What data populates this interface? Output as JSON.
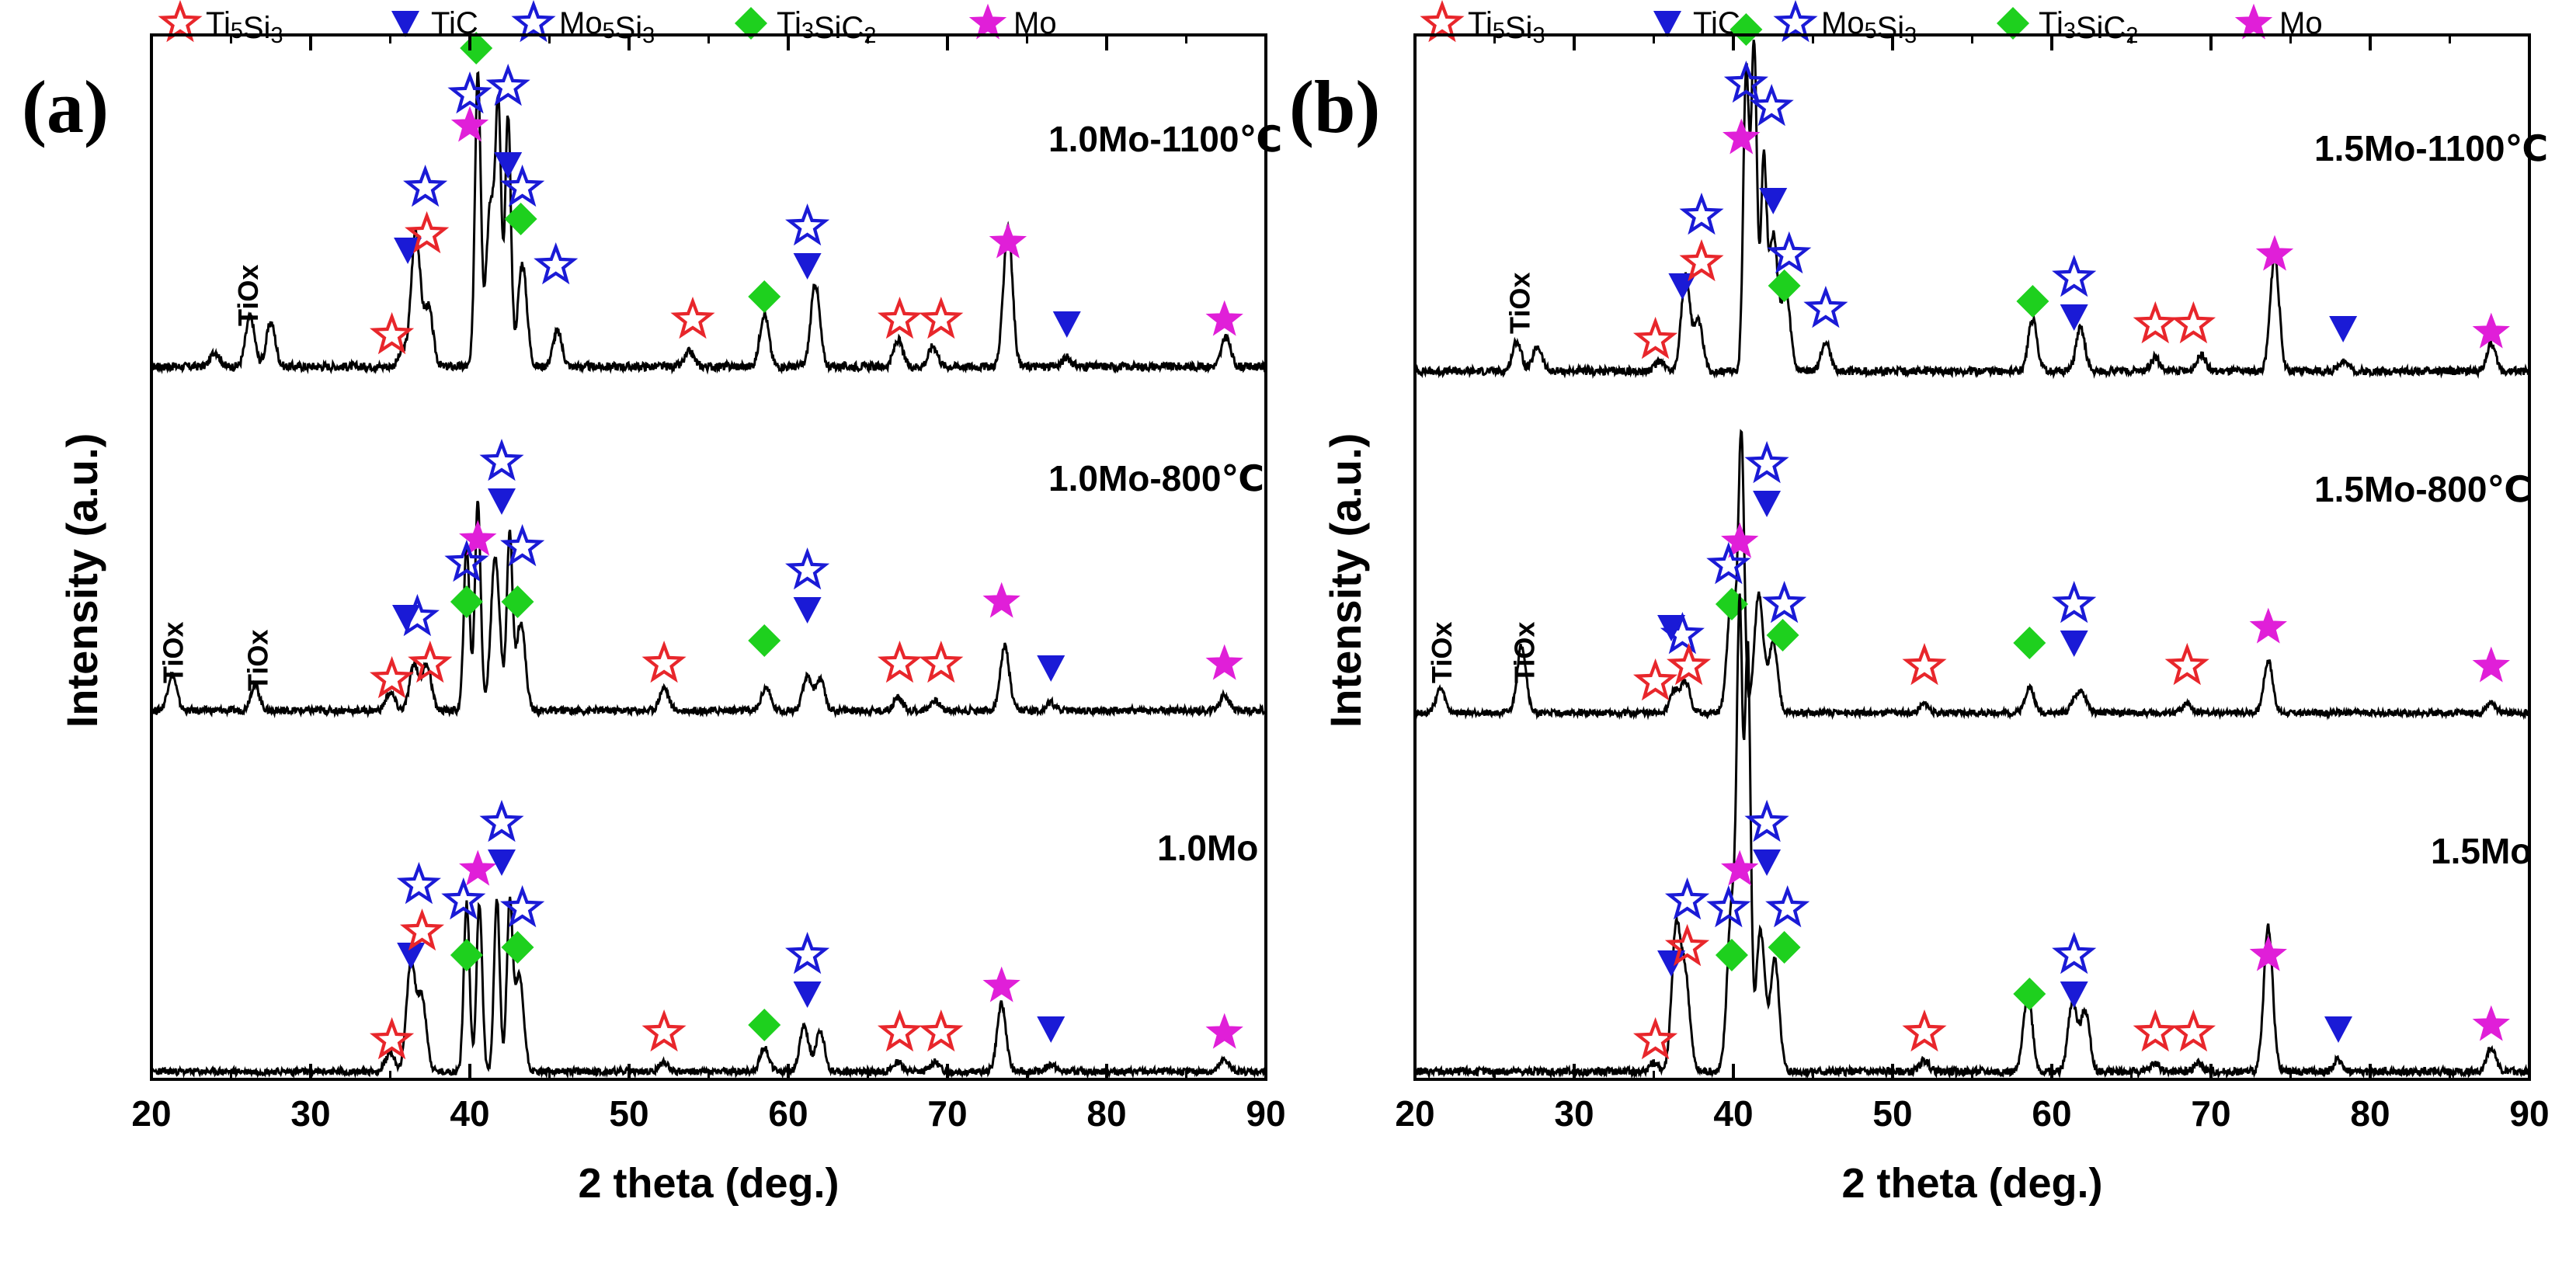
{
  "chart_data": [
    {
      "type": "line",
      "panel_label": "(a)",
      "xlabel": "2 theta (deg.)",
      "ylabel": "Intensity (a.u.)",
      "xlim": [
        20,
        90
      ],
      "xticks": [
        20,
        30,
        40,
        50,
        60,
        70,
        80,
        90
      ],
      "legend": [
        {
          "label": "Ti5Si3",
          "marker": "star-open",
          "color": "#e8262b"
        },
        {
          "label": "TiC",
          "marker": "triangle-down",
          "color": "#1a1ad6"
        },
        {
          "label": "Mo5Si3",
          "marker": "star-open",
          "color": "#1a1ad6"
        },
        {
          "label": "Ti3SiC2",
          "marker": "diamond",
          "color": "#1ed01e"
        },
        {
          "label": "Mo",
          "marker": "star-filled",
          "color": "#e01fd8"
        }
      ],
      "series": [
        {
          "name": "1.0Mo-1100℃",
          "peaks": [
            [
              24.0,
              0.05
            ],
            [
              26.2,
              0.17
            ],
            [
              27.5,
              0.15
            ],
            [
              35.8,
              0.05
            ],
            [
              36.6,
              0.46
            ],
            [
              37.4,
              0.2
            ],
            [
              40.5,
              1.0
            ],
            [
              41.3,
              0.55
            ],
            [
              41.8,
              0.8
            ],
            [
              42.4,
              0.85
            ],
            [
              43.3,
              0.35
            ],
            [
              45.5,
              0.12
            ],
            [
              53.8,
              0.05
            ],
            [
              58.5,
              0.18
            ],
            [
              61.7,
              0.28
            ],
            [
              66.9,
              0.09
            ],
            [
              69.1,
              0.07
            ],
            [
              73.8,
              0.48
            ],
            [
              77.5,
              0.03
            ],
            [
              87.5,
              0.1
            ]
          ],
          "annotations": [
            "TiOx"
          ]
        },
        {
          "name": "1.0Mo-800℃",
          "peaks": [
            [
              21.3,
              0.14
            ],
            [
              26.5,
              0.1
            ],
            [
              35.0,
              0.07
            ],
            [
              36.5,
              0.18
            ],
            [
              37.3,
              0.18
            ],
            [
              39.8,
              0.65
            ],
            [
              40.5,
              0.82
            ],
            [
              41.6,
              0.6
            ],
            [
              42.5,
              0.68
            ],
            [
              43.2,
              0.35
            ],
            [
              52.2,
              0.09
            ],
            [
              58.6,
              0.09
            ],
            [
              61.2,
              0.13
            ],
            [
              62.0,
              0.12
            ],
            [
              66.9,
              0.05
            ],
            [
              69.2,
              0.04
            ],
            [
              73.6,
              0.25
            ],
            [
              76.5,
              0.03
            ],
            [
              87.4,
              0.06
            ]
          ],
          "annotations": [
            "TiOx",
            "TiOx"
          ]
        },
        {
          "name": "1.0Mo",
          "peaks": [
            [
              35.0,
              0.08
            ],
            [
              36.3,
              0.45
            ],
            [
              37.0,
              0.3
            ],
            [
              39.8,
              0.7
            ],
            [
              40.6,
              0.7
            ],
            [
              41.7,
              0.72
            ],
            [
              42.5,
              0.68
            ],
            [
              43.1,
              0.4
            ],
            [
              52.2,
              0.04
            ],
            [
              58.5,
              0.1
            ],
            [
              61.0,
              0.19
            ],
            [
              62.0,
              0.17
            ],
            [
              66.9,
              0.04
            ],
            [
              69.2,
              0.04
            ],
            [
              73.4,
              0.28
            ],
            [
              76.5,
              0.03
            ],
            [
              87.4,
              0.05
            ]
          ]
        }
      ]
    },
    {
      "type": "line",
      "panel_label": "(b)",
      "xlabel": "2 theta (deg.)",
      "ylabel": "Intensity (a.u.)",
      "xlim": [
        20,
        90
      ],
      "xticks": [
        20,
        30,
        40,
        50,
        60,
        70,
        80,
        90
      ],
      "legend": [
        {
          "label": "Ti5Si3",
          "marker": "star-open",
          "color": "#e8262b"
        },
        {
          "label": "TiC",
          "marker": "triangle-down",
          "color": "#1a1ad6"
        },
        {
          "label": "Mo5Si3",
          "marker": "star-open",
          "color": "#1a1ad6"
        },
        {
          "label": "Ti3SiC2",
          "marker": "diamond",
          "color": "#1ed01e"
        },
        {
          "label": "Mo",
          "marker": "star-filled",
          "color": "#e01fd8"
        }
      ],
      "series": [
        {
          "name": "1.5Mo-1100℃",
          "peaks": [
            [
              26.4,
              0.11
            ],
            [
              27.7,
              0.09
            ],
            [
              35.4,
              0.04
            ],
            [
              37.0,
              0.35
            ],
            [
              37.8,
              0.18
            ],
            [
              40.8,
              1.1
            ],
            [
              41.3,
              1.2
            ],
            [
              41.9,
              0.75
            ],
            [
              42.5,
              0.5
            ],
            [
              43.3,
              0.28
            ],
            [
              45.8,
              0.11
            ],
            [
              58.8,
              0.19
            ],
            [
              61.8,
              0.16
            ],
            [
              66.5,
              0.05
            ],
            [
              69.4,
              0.06
            ],
            [
              74.0,
              0.42
            ],
            [
              78.3,
              0.04
            ],
            [
              87.6,
              0.1
            ]
          ],
          "annotations": [
            "TiOx"
          ]
        },
        {
          "name": "1.5Mo-800℃",
          "peaks": [
            [
              21.6,
              0.11
            ],
            [
              26.7,
              0.31
            ],
            [
              36.3,
              0.1
            ],
            [
              37.0,
              0.14
            ],
            [
              39.9,
              0.55
            ],
            [
              40.5,
              1.25
            ],
            [
              41.6,
              0.55
            ],
            [
              42.5,
              0.32
            ],
            [
              52.0,
              0.04
            ],
            [
              58.6,
              0.12
            ],
            [
              61.5,
              0.07
            ],
            [
              62.0,
              0.07
            ],
            [
              68.5,
              0.04
            ],
            [
              73.6,
              0.24
            ],
            [
              87.6,
              0.05
            ]
          ],
          "annotations": [
            "TiOx",
            "TiOx"
          ]
        },
        {
          "name": "1.5Mo",
          "peaks": [
            [
              35.0,
              0.03
            ],
            [
              36.4,
              0.5
            ],
            [
              37.0,
              0.32
            ],
            [
              39.9,
              0.6
            ],
            [
              40.4,
              1.55
            ],
            [
              40.9,
              1.5
            ],
            [
              41.7,
              0.5
            ],
            [
              42.6,
              0.4
            ],
            [
              52.0,
              0.04
            ],
            [
              58.5,
              0.28
            ],
            [
              61.3,
              0.25
            ],
            [
              62.1,
              0.22
            ],
            [
              66.5,
              0.03
            ],
            [
              69.2,
              0.03
            ],
            [
              73.6,
              0.52
            ],
            [
              78.0,
              0.04
            ],
            [
              87.6,
              0.09
            ]
          ]
        }
      ]
    }
  ]
}
